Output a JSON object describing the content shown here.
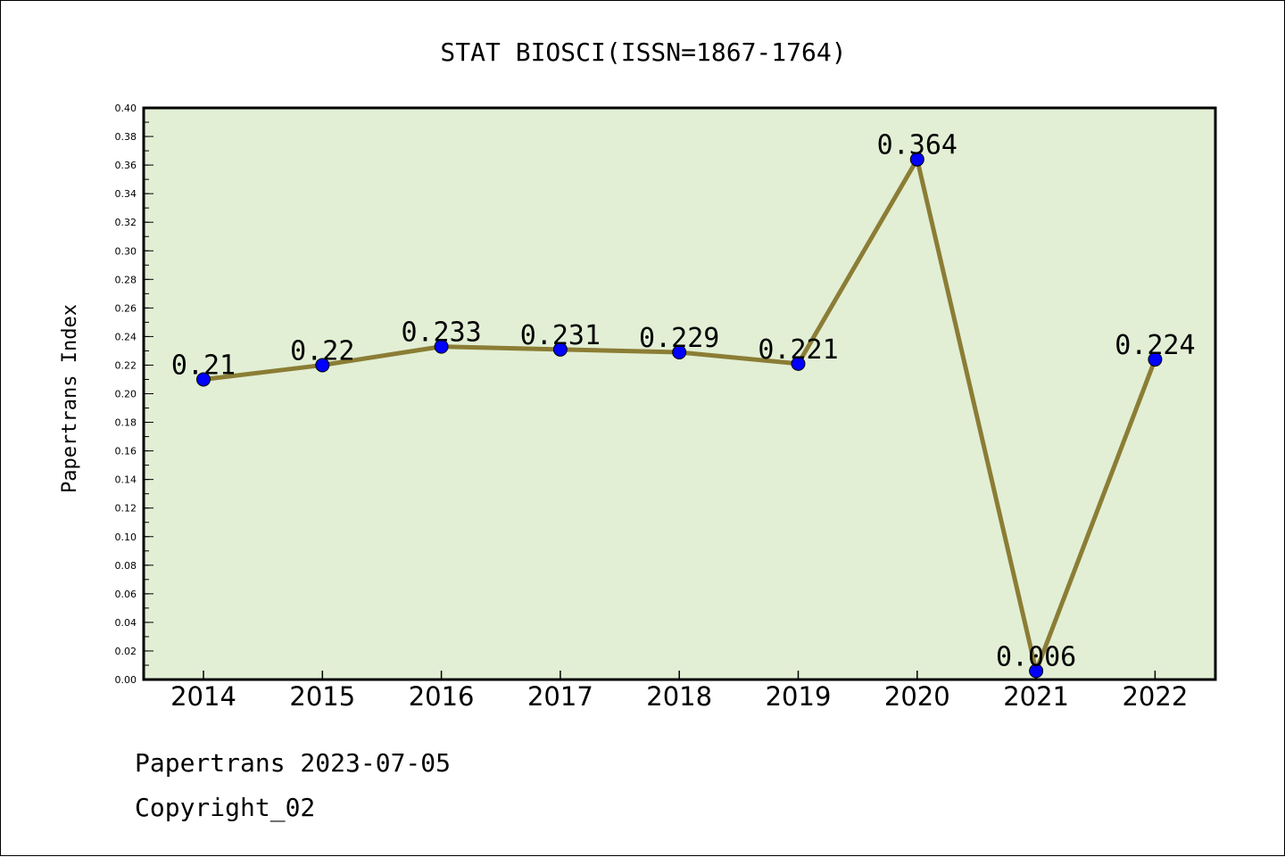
{
  "chart_data": {
    "type": "line",
    "title": "STAT BIOSCI(ISSN=1867-1764)",
    "xlabel": "",
    "ylabel": "Papertrans Index",
    "categories": [
      "2014",
      "2015",
      "2016",
      "2017",
      "2018",
      "2019",
      "2020",
      "2021",
      "2022"
    ],
    "series": [
      {
        "values": [
          0.21,
          0.22,
          0.233,
          0.231,
          0.229,
          0.221,
          0.364,
          0.006,
          0.224
        ],
        "labels": [
          "0.21",
          "0.22",
          "0.233",
          "0.231",
          "0.229",
          "0.221",
          "0.364",
          "0.006",
          "0.224"
        ]
      }
    ],
    "ylim": [
      0,
      0.4
    ],
    "yticks": [
      "0.00",
      "0.02",
      "0.04",
      "0.06",
      "0.08",
      "0.10",
      "0.12",
      "0.14",
      "0.16",
      "0.18",
      "0.20",
      "0.22",
      "0.24",
      "0.26",
      "0.28",
      "0.30",
      "0.32",
      "0.34",
      "0.36",
      "0.38",
      "0.40"
    ],
    "grid": false,
    "legend": "none",
    "colors": {
      "plot_background": "#e2efd5",
      "line": "#8b7d35",
      "marker": "#0000ff"
    }
  },
  "footer": {
    "date_line": "Papertrans 2023-07-05",
    "copyright": "Copyright_02"
  }
}
